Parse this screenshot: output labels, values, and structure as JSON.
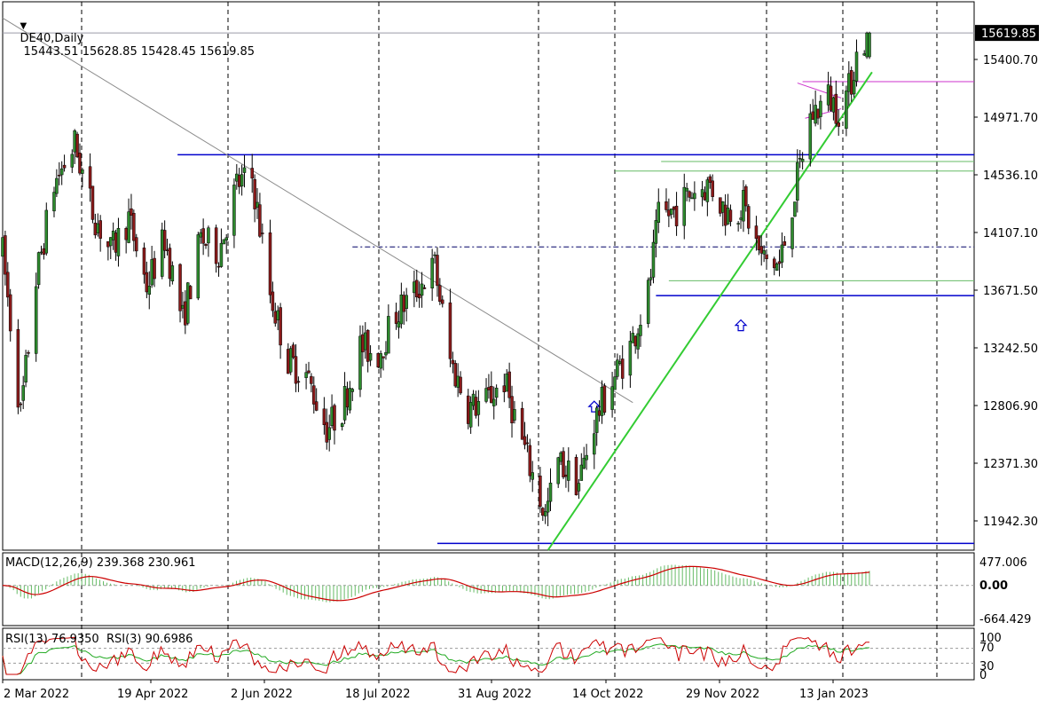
{
  "header": {
    "symbol_timeframe": "DE40,Daily",
    "ohlc": "15443.51 15628.85 15428.45 15619.85",
    "collapse_icon": "triangle-down-icon"
  },
  "macd_label": "MACD(12,26,9) 239.368 230.961",
  "rsi_label": "RSI(13) 76.9350  RSI(3) 90.6986",
  "price_axis": {
    "labels": [
      "15400.70",
      "14971.70",
      "14536.10",
      "14107.10",
      "13671.50",
      "13242.50",
      "12806.90",
      "12371.30",
      "11942.30"
    ],
    "current_price": "15619.85"
  },
  "macd_axis": {
    "labels": [
      "477.006",
      "0.00",
      "-664.429"
    ]
  },
  "rsi_axis": {
    "labels": [
      "100",
      "70",
      "30",
      "0"
    ]
  },
  "time_axis": {
    "labels": [
      "2 Mar 2022",
      "19 Apr 2022",
      "2 Jun 2022",
      "18 Jul 2022",
      "31 Aug 2022",
      "14 Oct 2022",
      "29 Nov 2022",
      "13 Jan 2023"
    ]
  },
  "colors": {
    "bull": "#2e8b2e",
    "bear": "#8b1a1a",
    "grid": "#000000",
    "blue_line": "#0000cd",
    "trend_green": "#33cc33",
    "thin_green": "#66bb66",
    "magenta": "#cc33cc",
    "macd_hist": "#66bb66",
    "macd_signal": "#cc0000",
    "rsi13": "#22aa22",
    "rsi3": "#cc0000",
    "arrow": "#0000cc"
  },
  "chart_data": {
    "type": "candlestick",
    "symbol": "DE40",
    "timeframe": "Daily",
    "y_range": [
      11800,
      15850
    ],
    "x_range": [
      "2022-03-01",
      "2023-02-01"
    ],
    "last_bar": {
      "open": 15443.51,
      "high": 15628.85,
      "low": 15428.45,
      "close": 15619.85
    },
    "price_path": [
      [
        "2022-03-01",
        14000
      ],
      [
        "2022-03-08",
        12800
      ],
      [
        "2022-03-14",
        13800
      ],
      [
        "2022-03-21",
        14500
      ],
      [
        "2022-03-29",
        14800
      ],
      [
        "2022-04-05",
        14300
      ],
      [
        "2022-04-12",
        14000
      ],
      [
        "2022-04-19",
        14250
      ],
      [
        "2022-04-26",
        13750
      ],
      [
        "2022-05-03",
        14100
      ],
      [
        "2022-05-10",
        13500
      ],
      [
        "2022-05-17",
        14100
      ],
      [
        "2022-05-24",
        14000
      ],
      [
        "2022-05-31",
        14500
      ],
      [
        "2022-06-06",
        14550
      ],
      [
        "2022-06-13",
        13700
      ],
      [
        "2022-06-20",
        13200
      ],
      [
        "2022-06-27",
        13100
      ],
      [
        "2022-07-05",
        12700
      ],
      [
        "2022-07-11",
        12850
      ],
      [
        "2022-07-18",
        13300
      ],
      [
        "2022-07-25",
        13250
      ],
      [
        "2022-08-01",
        13550
      ],
      [
        "2022-08-08",
        13700
      ],
      [
        "2022-08-16",
        13900
      ],
      [
        "2022-08-22",
        13200
      ],
      [
        "2022-08-29",
        12850
      ],
      [
        "2022-09-05",
        12900
      ],
      [
        "2022-09-12",
        13050
      ],
      [
        "2022-09-19",
        12600
      ],
      [
        "2022-09-28",
        12050
      ],
      [
        "2022-10-03",
        12450
      ],
      [
        "2022-10-11",
        12300
      ],
      [
        "2022-10-17",
        12750
      ],
      [
        "2022-10-24",
        13050
      ],
      [
        "2022-10-31",
        13300
      ],
      [
        "2022-11-07",
        13700
      ],
      [
        "2022-11-11",
        14250
      ],
      [
        "2022-11-17",
        14300
      ],
      [
        "2022-11-24",
        14450
      ],
      [
        "2022-12-01",
        14500
      ],
      [
        "2022-12-07",
        14300
      ],
      [
        "2022-12-14",
        14350
      ],
      [
        "2022-12-21",
        13950
      ],
      [
        "2022-12-28",
        13900
      ],
      [
        "2023-01-03",
        14450
      ],
      [
        "2023-01-09",
        15000
      ],
      [
        "2023-01-16",
        15150
      ],
      [
        "2023-01-20",
        15050
      ],
      [
        "2023-01-24",
        15200
      ],
      [
        "2023-01-27",
        15450
      ],
      [
        "2023-02-01",
        15620
      ]
    ],
    "horizontal_lines": [
      {
        "price": 15619.85,
        "from": "2022-03-01",
        "to": "2023-02-01",
        "color": "gray"
      },
      {
        "price": 14720,
        "from": "2022-05-08",
        "to": "2023-02-01",
        "color": "blue"
      },
      {
        "price": 14040,
        "from": "2022-07-15",
        "to": "2023-02-01",
        "color": "navy-dashed"
      },
      {
        "price": 13680,
        "from": "2022-11-10",
        "to": "2023-02-01",
        "color": "blue"
      },
      {
        "price": 11850,
        "from": "2022-08-17",
        "to": "2023-02-01",
        "color": "blue"
      },
      {
        "price": 14600,
        "from": "2022-10-25",
        "to": "2023-02-01",
        "color": "green"
      },
      {
        "price": 14670,
        "from": "2022-11-12",
        "to": "2023-02-01",
        "color": "green"
      },
      {
        "price": 13790,
        "from": "2022-11-15",
        "to": "2023-02-01",
        "color": "green"
      },
      {
        "price": 15260,
        "from": "2023-01-06",
        "to": "2023-02-01",
        "color": "magenta"
      }
    ],
    "trendlines": [
      {
        "from": [
          "2022-09-29",
          11800
        ],
        "to": [
          "2023-02-02",
          15330
        ],
        "color": "green"
      },
      {
        "from": [
          "2022-03-01",
          15730
        ],
        "to": [
          "2022-11-01",
          12890
        ],
        "color": "gray"
      }
    ],
    "arrows": [
      {
        "date": "2022-10-17",
        "price": 12900,
        "direction": "up"
      },
      {
        "date": "2022-12-13",
        "price": 13500,
        "direction": "up"
      }
    ],
    "macd": {
      "fast": 12,
      "slow": 26,
      "signal": 9,
      "main": 239.368,
      "signal_value": 230.961,
      "y_range": [
        -664.429,
        477.006
      ]
    },
    "rsi": {
      "period_a": 13,
      "value_a": 76.935,
      "period_b": 3,
      "value_b": 90.6986,
      "levels": [
        70,
        30
      ],
      "y_range": [
        0,
        100
      ]
    }
  }
}
